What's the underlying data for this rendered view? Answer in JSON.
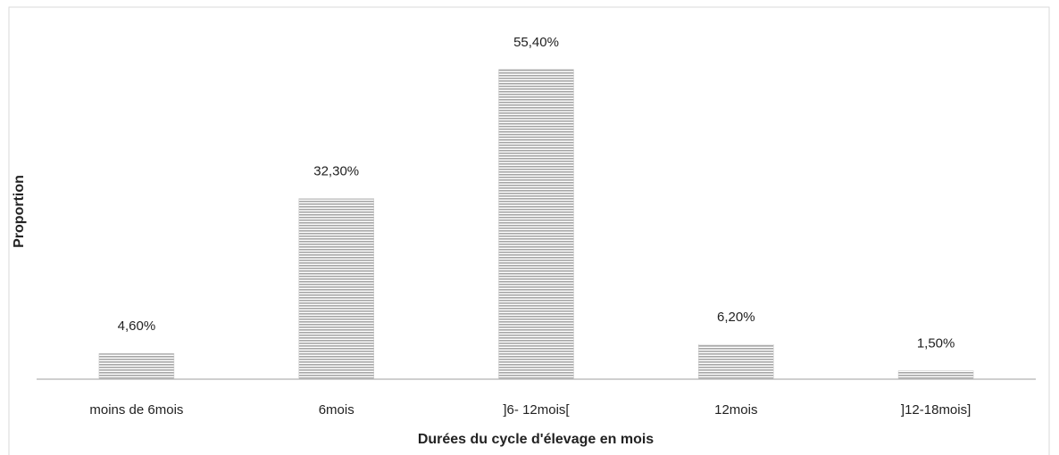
{
  "chart_data": {
    "type": "bar",
    "x_label": "Durées du cycle d'élevage en mois",
    "y_label": "Proportion",
    "categories": [
      "moins de 6mois",
      "6mois",
      "]6- 12mois[",
      "12mois",
      "]12-18mois]"
    ],
    "values": [
      4.6,
      32.3,
      55.4,
      6.2,
      1.5
    ],
    "value_labels": [
      "4,60%",
      "32,30%",
      "55,40%",
      "6,20%",
      "1,50%"
    ],
    "color": "#a6a6a6",
    "ylim": [
      0,
      60
    ]
  }
}
